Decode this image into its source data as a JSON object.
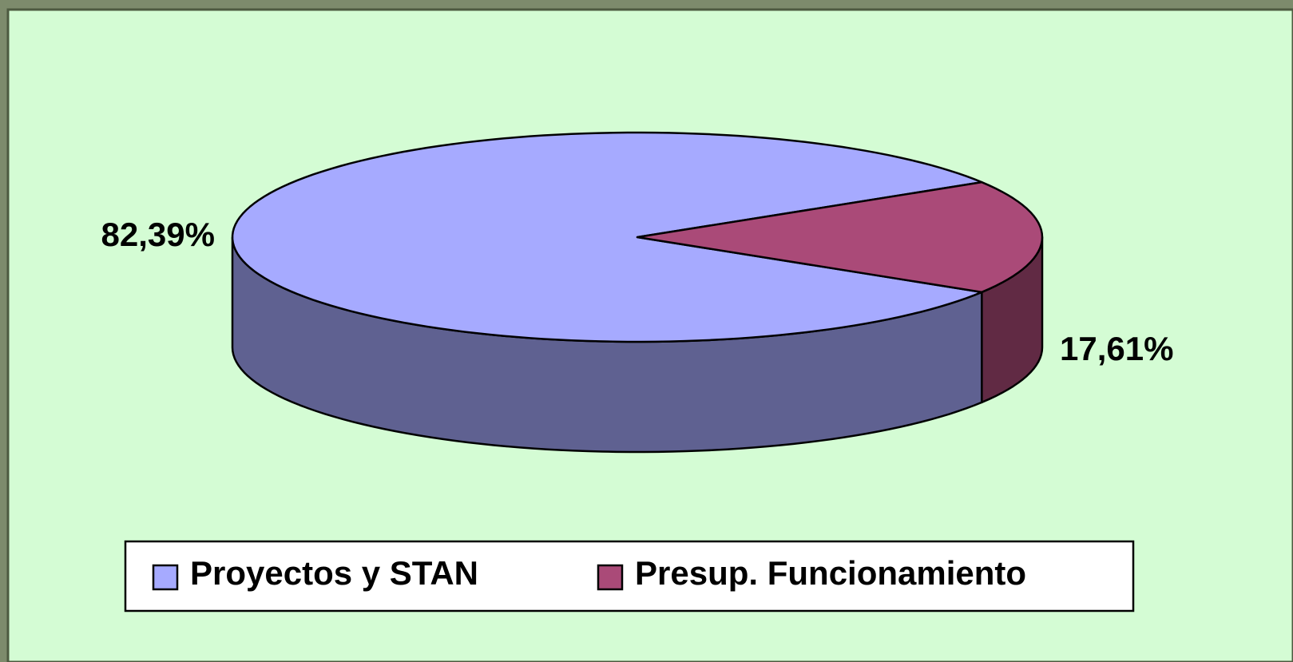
{
  "chart_data": {
    "type": "pie",
    "categories": [
      "Proyectos y STAN",
      "Presup. Funcionamiento"
    ],
    "values": [
      82.39,
      17.61
    ],
    "value_labels": [
      "82,39%",
      "17,61%"
    ],
    "colors": [
      "#a6aaff",
      "#aa4a78"
    ],
    "legend": "bottom"
  }
}
